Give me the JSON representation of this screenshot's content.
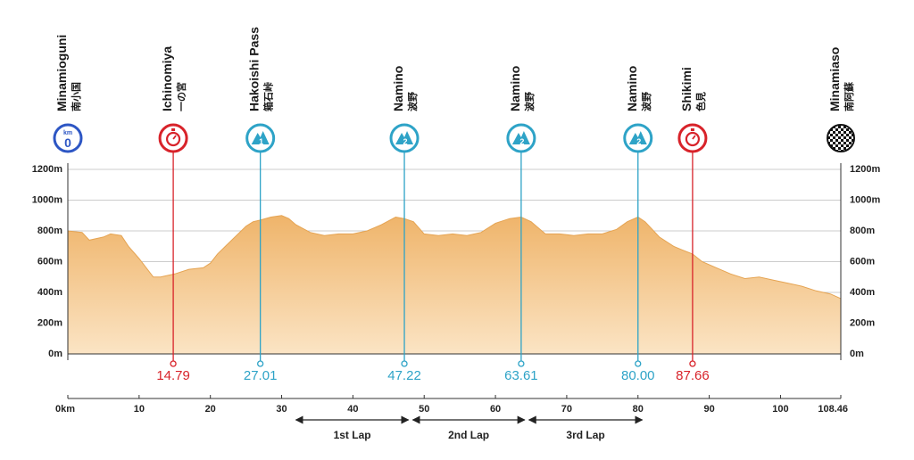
{
  "chart_data": {
    "type": "area",
    "title": "",
    "xlabel": "",
    "ylabel": "",
    "x_range": [
      0,
      108.46
    ],
    "y_range": [
      0,
      1200
    ],
    "grid": true,
    "y_ticks": [
      {
        "value": 0,
        "label": "0m"
      },
      {
        "value": 200,
        "label": "200m"
      },
      {
        "value": 400,
        "label": "400m"
      },
      {
        "value": 600,
        "label": "600m"
      },
      {
        "value": 800,
        "label": "800m"
      },
      {
        "value": 1000,
        "label": "1000m"
      },
      {
        "value": 1200,
        "label": "1200m"
      }
    ],
    "x_ticks": [
      {
        "value": 0,
        "label": "0km"
      },
      {
        "value": 10,
        "label": "10"
      },
      {
        "value": 20,
        "label": "20"
      },
      {
        "value": 30,
        "label": "30"
      },
      {
        "value": 40,
        "label": "40"
      },
      {
        "value": 50,
        "label": "50"
      },
      {
        "value": 60,
        "label": "60"
      },
      {
        "value": 70,
        "label": "70"
      },
      {
        "value": 80,
        "label": "80"
      },
      {
        "value": 90,
        "label": "90"
      },
      {
        "value": 100,
        "label": "100"
      },
      {
        "value": 108.46,
        "label": "108.46"
      }
    ],
    "profile": {
      "x": [
        0,
        2,
        3,
        5,
        6,
        7.5,
        8.5,
        10,
        12,
        13,
        15,
        17,
        19,
        20,
        21,
        23,
        25,
        26,
        27,
        28.5,
        30,
        31,
        32,
        34,
        36,
        38,
        40,
        42,
        44,
        46,
        47.2,
        48.5,
        50,
        52,
        54,
        56,
        58,
        60,
        62,
        63.6,
        65,
        67,
        69,
        71,
        73,
        75,
        77,
        78.5,
        80,
        81,
        83,
        85,
        86,
        87.66,
        89,
        91,
        93,
        95,
        97,
        99,
        101,
        103,
        105,
        107,
        108.46
      ],
      "y": [
        800,
        790,
        740,
        760,
        780,
        770,
        700,
        620,
        500,
        500,
        520,
        550,
        560,
        590,
        650,
        740,
        830,
        860,
        870,
        890,
        900,
        880,
        840,
        790,
        770,
        780,
        780,
        800,
        840,
        890,
        880,
        860,
        780,
        770,
        780,
        770,
        790,
        850,
        880,
        890,
        860,
        780,
        780,
        770,
        780,
        780,
        810,
        860,
        890,
        860,
        760,
        700,
        680,
        650,
        600,
        560,
        520,
        490,
        500,
        480,
        460,
        440,
        410,
        390,
        360
      ]
    },
    "checkpoints": [
      {
        "name": "Minamioguni",
        "jp": "南小国",
        "km": 0,
        "kind": "start",
        "badge": "0",
        "badge_top": "km",
        "color": "#2d56c4"
      },
      {
        "name": "Ichinomiya",
        "jp": "一の宮",
        "km": 14.79,
        "km_label": "14.79",
        "kind": "sprint",
        "color": "#d8232a"
      },
      {
        "name": "Hakoishi Pass",
        "jp": "箱石峠",
        "km": 27.01,
        "km_label": "27.01",
        "kind": "kom",
        "badge": "1",
        "color": "#2ea3c7"
      },
      {
        "name": "Namino",
        "jp": "波野",
        "km": 47.22,
        "km_label": "47.22",
        "kind": "kom",
        "badge": "2",
        "color": "#2ea3c7"
      },
      {
        "name": "Namino",
        "jp": "波野",
        "km": 63.61,
        "km_label": "63.61",
        "kind": "kom",
        "badge": "2",
        "color": "#2ea3c7"
      },
      {
        "name": "Namino",
        "jp": "波野",
        "km": 80.0,
        "km_label": "80.00",
        "kind": "kom",
        "badge": "2",
        "color": "#2ea3c7"
      },
      {
        "name": "Shikimi",
        "jp": "色見",
        "km": 87.66,
        "km_label": "87.66",
        "kind": "sprint",
        "color": "#d8232a"
      },
      {
        "name": "Minamiaso",
        "jp": "南阿蘇",
        "km": 108.46,
        "kind": "finish",
        "color": "#111111"
      }
    ],
    "laps": [
      {
        "label": "1st Lap",
        "from": 32,
        "to": 47.8
      },
      {
        "label": "2nd Lap",
        "from": 48.4,
        "to": 64.1
      },
      {
        "label": "3rd Lap",
        "from": 64.7,
        "to": 80.6
      }
    ]
  },
  "colors": {
    "fill_top": "#efb46a",
    "fill_bottom": "#fbe4c4",
    "grid": "#cccccc",
    "axis": "#333333",
    "sprint": "#d8232a",
    "kom": "#2ea3c7",
    "start": "#2d56c4"
  }
}
